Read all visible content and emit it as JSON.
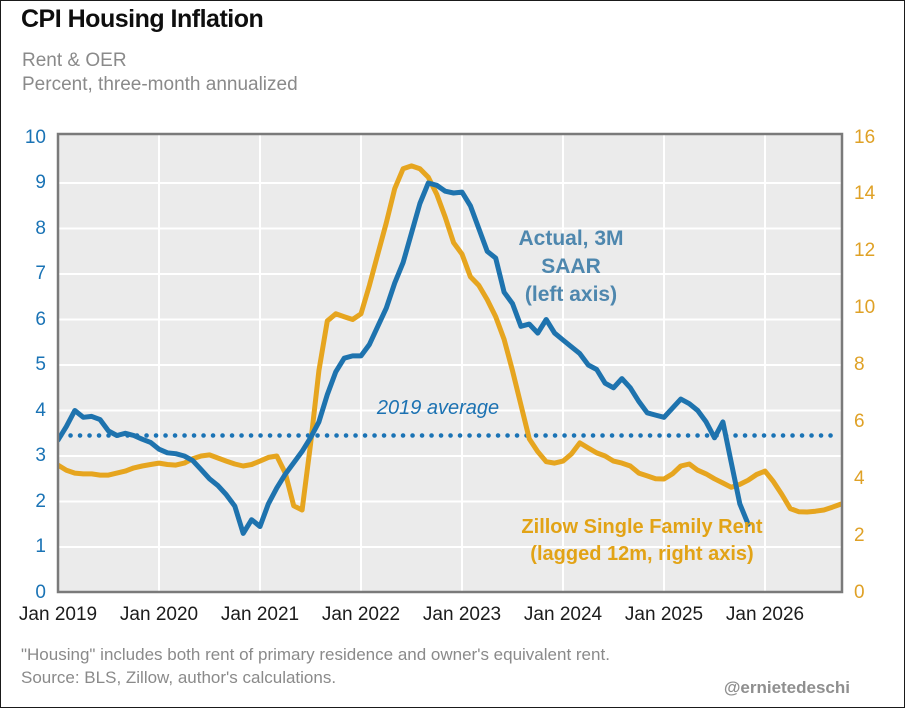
{
  "title": "CPI Housing Inflation",
  "subtitle_line1": "Rent & OER",
  "subtitle_line2": "Percent, three-month annualized",
  "footnote_line1": "\"Housing\" includes both rent of primary residence and owner's equivalent rent.",
  "footnote_line2": "Source: BLS, Zillow, author's calculations.",
  "credit": "@ernietedeschi",
  "colors": {
    "blue_line": "#1e73ae",
    "blue_axis_text": "#1a73b5",
    "blue_annotation": "#4e87ae",
    "gold_line": "#e6a51f",
    "gold_axis_text": "#dfa126",
    "gold_annotation": "#e2a316",
    "plot_background": "#ebebeb",
    "gridline": "#ffffff",
    "plot_border": "#7a7a7a"
  },
  "chart_data": {
    "type": "line",
    "title": "CPI Housing Inflation",
    "x_start": "2019-01",
    "frequency": "monthly",
    "x_tick_labels": [
      "Jan 2019",
      "Jan 2020",
      "Jan 2021",
      "Jan 2022",
      "Jan 2023",
      "Jan 2024",
      "Jan 2025",
      "Jan 2026"
    ],
    "left_axis": {
      "range": [
        0,
        10
      ],
      "ticks": [
        0,
        1,
        2,
        3,
        4,
        5,
        6,
        7,
        8,
        9,
        10
      ]
    },
    "right_axis": {
      "range": [
        0,
        16
      ],
      "ticks": [
        0,
        2,
        4,
        6,
        8,
        10,
        12,
        14,
        16
      ]
    },
    "grid": true,
    "reference_line": {
      "label": "2019 average",
      "axis": "left",
      "value": 3.45,
      "style": "dotted"
    },
    "series": [
      {
        "name": "Actual, 3M SAAR",
        "axis": "left",
        "annotation_lines": [
          "Actual, 3M",
          "SAAR",
          "(left axis)"
        ],
        "start": "2019-01",
        "values": [
          3.35,
          3.65,
          4.0,
          3.85,
          3.87,
          3.8,
          3.55,
          3.45,
          3.5,
          3.45,
          3.37,
          3.3,
          3.15,
          3.07,
          3.05,
          3.0,
          2.9,
          2.7,
          2.5,
          2.35,
          2.15,
          1.9,
          1.3,
          1.6,
          1.45,
          1.95,
          2.3,
          2.6,
          2.85,
          3.1,
          3.4,
          3.75,
          4.35,
          4.85,
          5.15,
          5.2,
          5.2,
          5.45,
          5.85,
          6.25,
          6.8,
          7.25,
          7.9,
          8.55,
          9.0,
          8.95,
          8.82,
          8.78,
          8.8,
          8.5,
          8.0,
          7.5,
          7.35,
          6.6,
          6.35,
          5.85,
          5.9,
          5.7,
          6.0,
          5.7,
          5.55,
          5.4,
          5.25,
          5.0,
          4.9,
          4.6,
          4.5,
          4.7,
          4.5,
          4.2,
          3.95,
          3.9,
          3.85,
          4.05,
          4.25,
          4.15,
          4.0,
          3.75,
          3.4,
          3.75,
          2.85,
          1.95,
          1.5
        ]
      },
      {
        "name": "Zillow Single Family Rent (lagged 12m)",
        "axis": "right",
        "annotation_lines": [
          "Zillow Single Family Rent",
          "(lagged 12m, right axis)"
        ],
        "start": "2019-01",
        "values": [
          4.48,
          4.3,
          4.2,
          4.17,
          4.17,
          4.13,
          4.13,
          4.2,
          4.27,
          4.38,
          4.45,
          4.5,
          4.55,
          4.5,
          4.48,
          4.55,
          4.7,
          4.8,
          4.84,
          4.73,
          4.62,
          4.52,
          4.45,
          4.5,
          4.62,
          4.75,
          4.8,
          4.2,
          3.05,
          2.9,
          5.2,
          7.8,
          9.55,
          9.8,
          9.7,
          9.6,
          9.8,
          10.8,
          11.9,
          13.0,
          14.2,
          14.9,
          15.0,
          14.9,
          14.6,
          14.0,
          13.2,
          12.3,
          11.9,
          11.1,
          10.8,
          10.3,
          9.7,
          8.9,
          7.8,
          6.6,
          5.4,
          4.95,
          4.6,
          4.55,
          4.62,
          4.87,
          5.26,
          5.08,
          4.91,
          4.8,
          4.62,
          4.55,
          4.45,
          4.2,
          4.1,
          4.0,
          3.99,
          4.17,
          4.45,
          4.52,
          4.3,
          4.17,
          4.0,
          3.85,
          3.7,
          3.8,
          3.95,
          4.15,
          4.27,
          3.9,
          3.45,
          2.95,
          2.84,
          2.83,
          2.86,
          2.9,
          3.0,
          3.11
        ]
      }
    ]
  }
}
